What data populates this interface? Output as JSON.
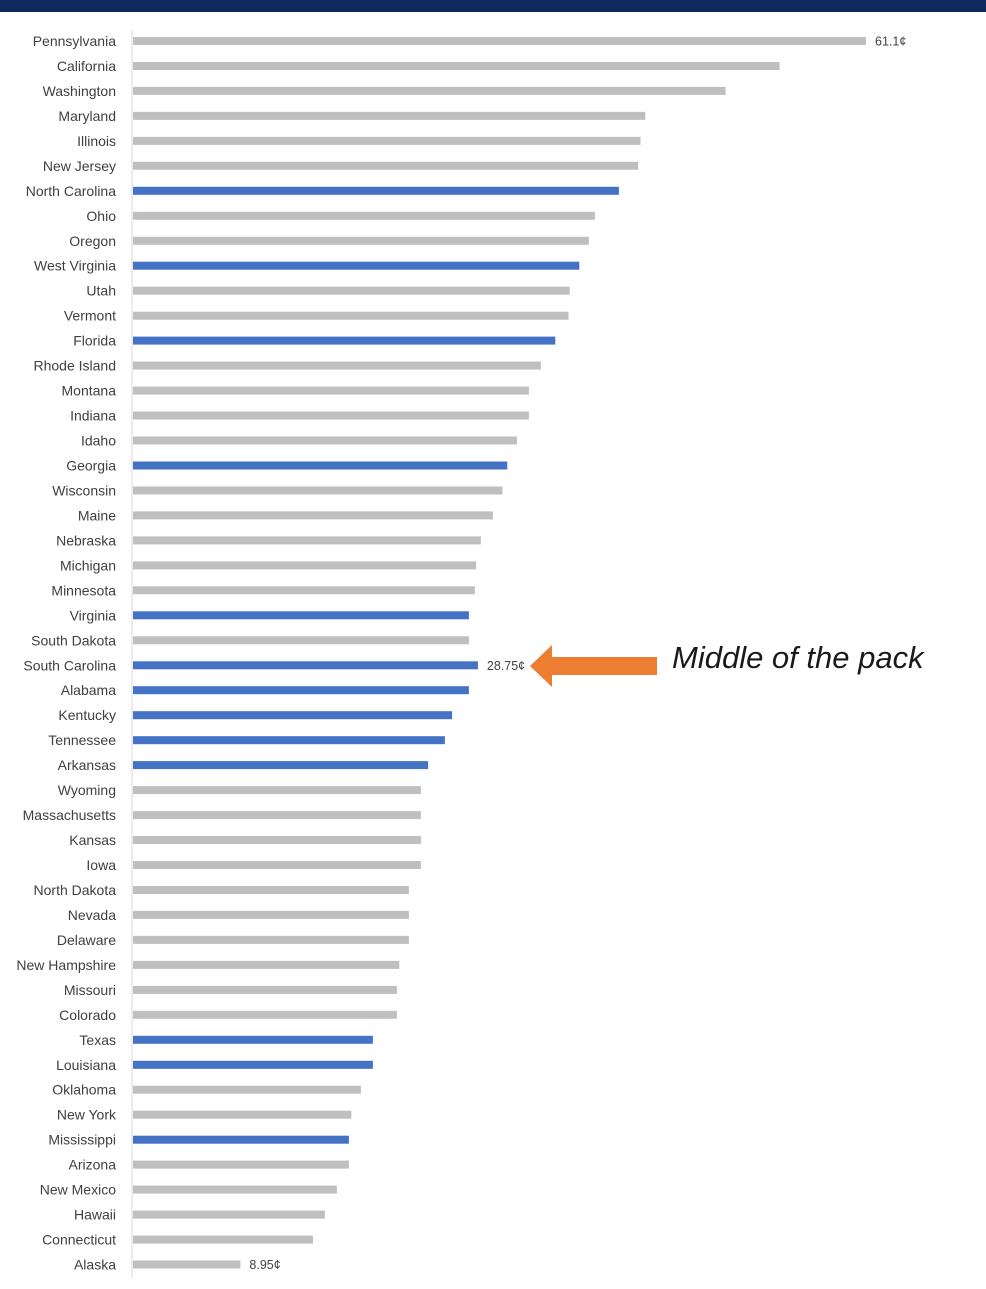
{
  "chart_data": {
    "type": "bar",
    "orientation": "horizontal",
    "unit": "¢",
    "categories": [
      "Pennsylvania",
      "California",
      "Washington",
      "Maryland",
      "Illinois",
      "New Jersey",
      "North Carolina",
      "Ohio",
      "Oregon",
      "West Virginia",
      "Utah",
      "Vermont",
      "Florida",
      "Rhode Island",
      "Montana",
      "Indiana",
      "Idaho",
      "Georgia",
      "Wisconsin",
      "Maine",
      "Nebraska",
      "Michigan",
      "Minnesota",
      "Virginia",
      "South Dakota",
      "South Carolina",
      "Alabama",
      "Kentucky",
      "Tennessee",
      "Arkansas",
      "Wyoming",
      "Massachusetts",
      "Kansas",
      "Iowa",
      "North Dakota",
      "Nevada",
      "Delaware",
      "New Hampshire",
      "Missouri",
      "Colorado",
      "Texas",
      "Louisiana",
      "Oklahoma",
      "New York",
      "Mississippi",
      "Arizona",
      "New Mexico",
      "Hawaii",
      "Connecticut",
      "Alaska"
    ],
    "values": [
      61.1,
      53.9,
      49.4,
      42.7,
      42.3,
      42.1,
      40.5,
      38.5,
      38.0,
      37.2,
      36.4,
      36.3,
      35.2,
      34.0,
      33.0,
      33.0,
      32.0,
      31.2,
      30.8,
      30.0,
      29.0,
      28.6,
      28.5,
      28.0,
      28.0,
      28.75,
      28.0,
      26.6,
      26.0,
      24.6,
      24.0,
      24.0,
      24.0,
      24.0,
      23.0,
      23.0,
      23.0,
      22.2,
      22.0,
      22.0,
      20.0,
      20.0,
      19.0,
      18.2,
      18.0,
      18.0,
      17.0,
      16.0,
      15.0,
      8.95
    ],
    "highlighted": [
      "North Carolina",
      "West Virginia",
      "Florida",
      "Georgia",
      "Virginia",
      "South Carolina",
      "Alabama",
      "Kentucky",
      "Tennessee",
      "Arkansas",
      "Texas",
      "Louisiana",
      "Mississippi"
    ],
    "colors": {
      "highlight": "#4472c4",
      "default": "#bfbfbf",
      "arrow": "#ed7d31",
      "banner": "#0f2a5c"
    },
    "data_labels": [
      {
        "category": "Pennsylvania",
        "text": "61.1¢"
      },
      {
        "category": "South Carolina",
        "text": "28.75¢"
      },
      {
        "category": "Alaska",
        "text": "8.95¢"
      }
    ],
    "xlim": [
      0,
      61.1
    ],
    "grid": false,
    "legend": "none",
    "annotation": {
      "text": "Middle of the pack",
      "target": "South Carolina"
    }
  }
}
